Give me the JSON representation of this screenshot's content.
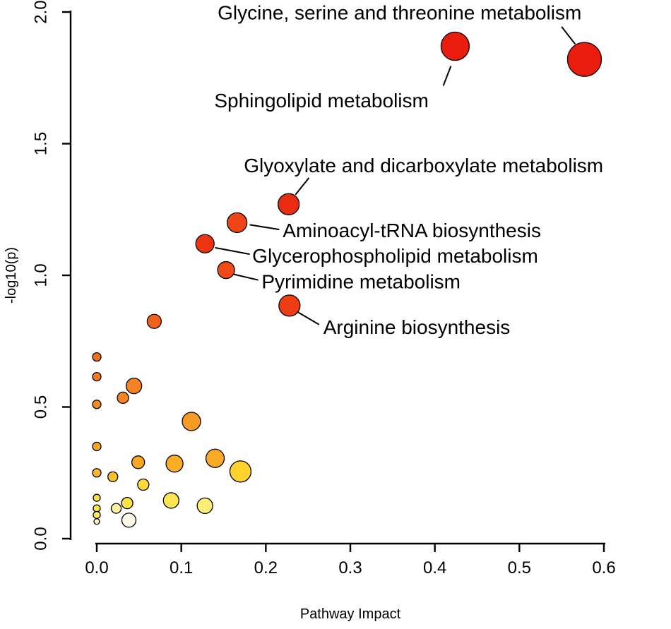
{
  "figure": {
    "background": "#ffffff"
  },
  "chart_data": {
    "type": "scatter",
    "subtype": "bubble",
    "title": "",
    "xlabel": "Pathway Impact",
    "ylabel": "-log10(p)",
    "xlim": [
      0.0,
      0.6
    ],
    "ylim": [
      0.0,
      2.0
    ],
    "x_ticks": [
      0.0,
      0.1,
      0.2,
      0.3,
      0.4,
      0.5,
      0.6
    ],
    "x_tick_labels": [
      "0.0",
      "0.1",
      "0.2",
      "0.3",
      "0.4",
      "0.5",
      "0.6"
    ],
    "y_ticks": [
      0.0,
      0.5,
      1.0,
      1.5,
      2.0
    ],
    "y_tick_labels": [
      "0.0",
      "0.5",
      "1.0",
      "1.5",
      "2.0"
    ],
    "grid": false,
    "legend": "none",
    "color_scale": {
      "low": "#fbf9e3",
      "mid": "#f9a825",
      "high": "#ea1c0d",
      "meaning": "p-value significance (pale = low, red = high)"
    },
    "point_style": {
      "stroke": "#000000",
      "stroke_width": 1.3
    },
    "points": [
      {
        "x": 0.577,
        "y": 1.82,
        "r": 24,
        "color": "#ea1c0d",
        "label": "Glycine, serine and threonine metabolism"
      },
      {
        "x": 0.424,
        "y": 1.87,
        "r": 20,
        "color": "#ea1c0d",
        "label": "Sphingolipid metabolism"
      },
      {
        "x": 0.227,
        "y": 1.27,
        "r": 15,
        "color": "#ec2c10",
        "label": "Glyoxylate and dicarboxylate metabolism"
      },
      {
        "x": 0.166,
        "y": 1.2,
        "r": 14,
        "color": "#ef4515",
        "label": "Aminoacyl-tRNA biosynthesis"
      },
      {
        "x": 0.128,
        "y": 1.12,
        "r": 13,
        "color": "#ed3312",
        "label": "Glycerophospholipid metabolism"
      },
      {
        "x": 0.153,
        "y": 1.02,
        "r": 12,
        "color": "#ef4a17",
        "label": "Pyrimidine metabolism"
      },
      {
        "x": 0.228,
        "y": 0.885,
        "r": 15,
        "color": "#ee3d14",
        "label": "Arginine biosynthesis"
      },
      {
        "x": 0.068,
        "y": 0.825,
        "r": 10,
        "color": "#f2601c"
      },
      {
        "x": 0.0,
        "y": 0.69,
        "r": 6,
        "color": "#f37020"
      },
      {
        "x": 0.0,
        "y": 0.615,
        "r": 6,
        "color": "#f37a21"
      },
      {
        "x": 0.044,
        "y": 0.58,
        "r": 11,
        "color": "#f58322"
      },
      {
        "x": 0.031,
        "y": 0.535,
        "r": 8,
        "color": "#f58522"
      },
      {
        "x": 0.0,
        "y": 0.51,
        "r": 6,
        "color": "#f58c23"
      },
      {
        "x": 0.112,
        "y": 0.445,
        "r": 13,
        "color": "#f79b25"
      },
      {
        "x": 0.0,
        "y": 0.35,
        "r": 6,
        "color": "#f9a526"
      },
      {
        "x": 0.14,
        "y": 0.305,
        "r": 13,
        "color": "#f9ab27"
      },
      {
        "x": 0.092,
        "y": 0.285,
        "r": 12,
        "color": "#faae28"
      },
      {
        "x": 0.049,
        "y": 0.29,
        "r": 9,
        "color": "#f9a826"
      },
      {
        "x": 0.0,
        "y": 0.25,
        "r": 6,
        "color": "#fbb62b"
      },
      {
        "x": 0.17,
        "y": 0.255,
        "r": 15,
        "color": "#ffd22e"
      },
      {
        "x": 0.019,
        "y": 0.235,
        "r": 7,
        "color": "#fcc02c"
      },
      {
        "x": 0.055,
        "y": 0.205,
        "r": 8,
        "color": "#ffdc38"
      },
      {
        "x": 0.036,
        "y": 0.135,
        "r": 8,
        "color": "#ffe345"
      },
      {
        "x": 0.088,
        "y": 0.145,
        "r": 11,
        "color": "#ffe64f"
      },
      {
        "x": 0.128,
        "y": 0.125,
        "r": 11,
        "color": "#ffef79"
      },
      {
        "x": 0.0,
        "y": 0.155,
        "r": 5,
        "color": "#ffe23e"
      },
      {
        "x": 0.0,
        "y": 0.115,
        "r": 5,
        "color": "#ffe84f"
      },
      {
        "x": 0.023,
        "y": 0.115,
        "r": 7,
        "color": "#fff2a2"
      },
      {
        "x": 0.0,
        "y": 0.09,
        "r": 5,
        "color": "#ffec60"
      },
      {
        "x": 0.038,
        "y": 0.07,
        "r": 10,
        "color": "#fbf9e3"
      },
      {
        "x": 0.0,
        "y": 0.065,
        "r": 4,
        "color": "#fff6c4"
      }
    ],
    "annotations": [
      {
        "text": "Glycine, serine and threonine metabolism",
        "tx": 0.143,
        "ty": 1.972,
        "line": [
          0.55,
          1.944,
          0.566,
          1.878
        ]
      },
      {
        "text": "Sphingolipid metabolism",
        "tx": 0.139,
        "ty": 1.638,
        "line": [
          0.41,
          1.72,
          0.419,
          1.795
        ]
      },
      {
        "text": "Glyoxylate and dicarboxylate metabolism",
        "tx": 0.174,
        "ty": 1.391,
        "line": [
          0.251,
          1.37,
          0.235,
          1.306
        ]
      },
      {
        "text": "Aminoacyl-tRNA biosynthesis",
        "tx": 0.22,
        "ty": 1.145,
        "line": [
          0.216,
          1.174,
          0.181,
          1.192
        ]
      },
      {
        "text": "Glycerophospholipid metabolism",
        "tx": 0.184,
        "ty": 1.048,
        "line": [
          0.181,
          1.08,
          0.14,
          1.105
        ]
      },
      {
        "text": "Pyrimidine metabolism",
        "tx": 0.195,
        "ty": 0.951,
        "line": [
          0.191,
          0.982,
          0.162,
          1.004
        ]
      },
      {
        "text": "Arginine biosynthesis",
        "tx": 0.268,
        "ty": 0.777,
        "line": [
          0.263,
          0.813,
          0.237,
          0.862
        ]
      }
    ]
  }
}
